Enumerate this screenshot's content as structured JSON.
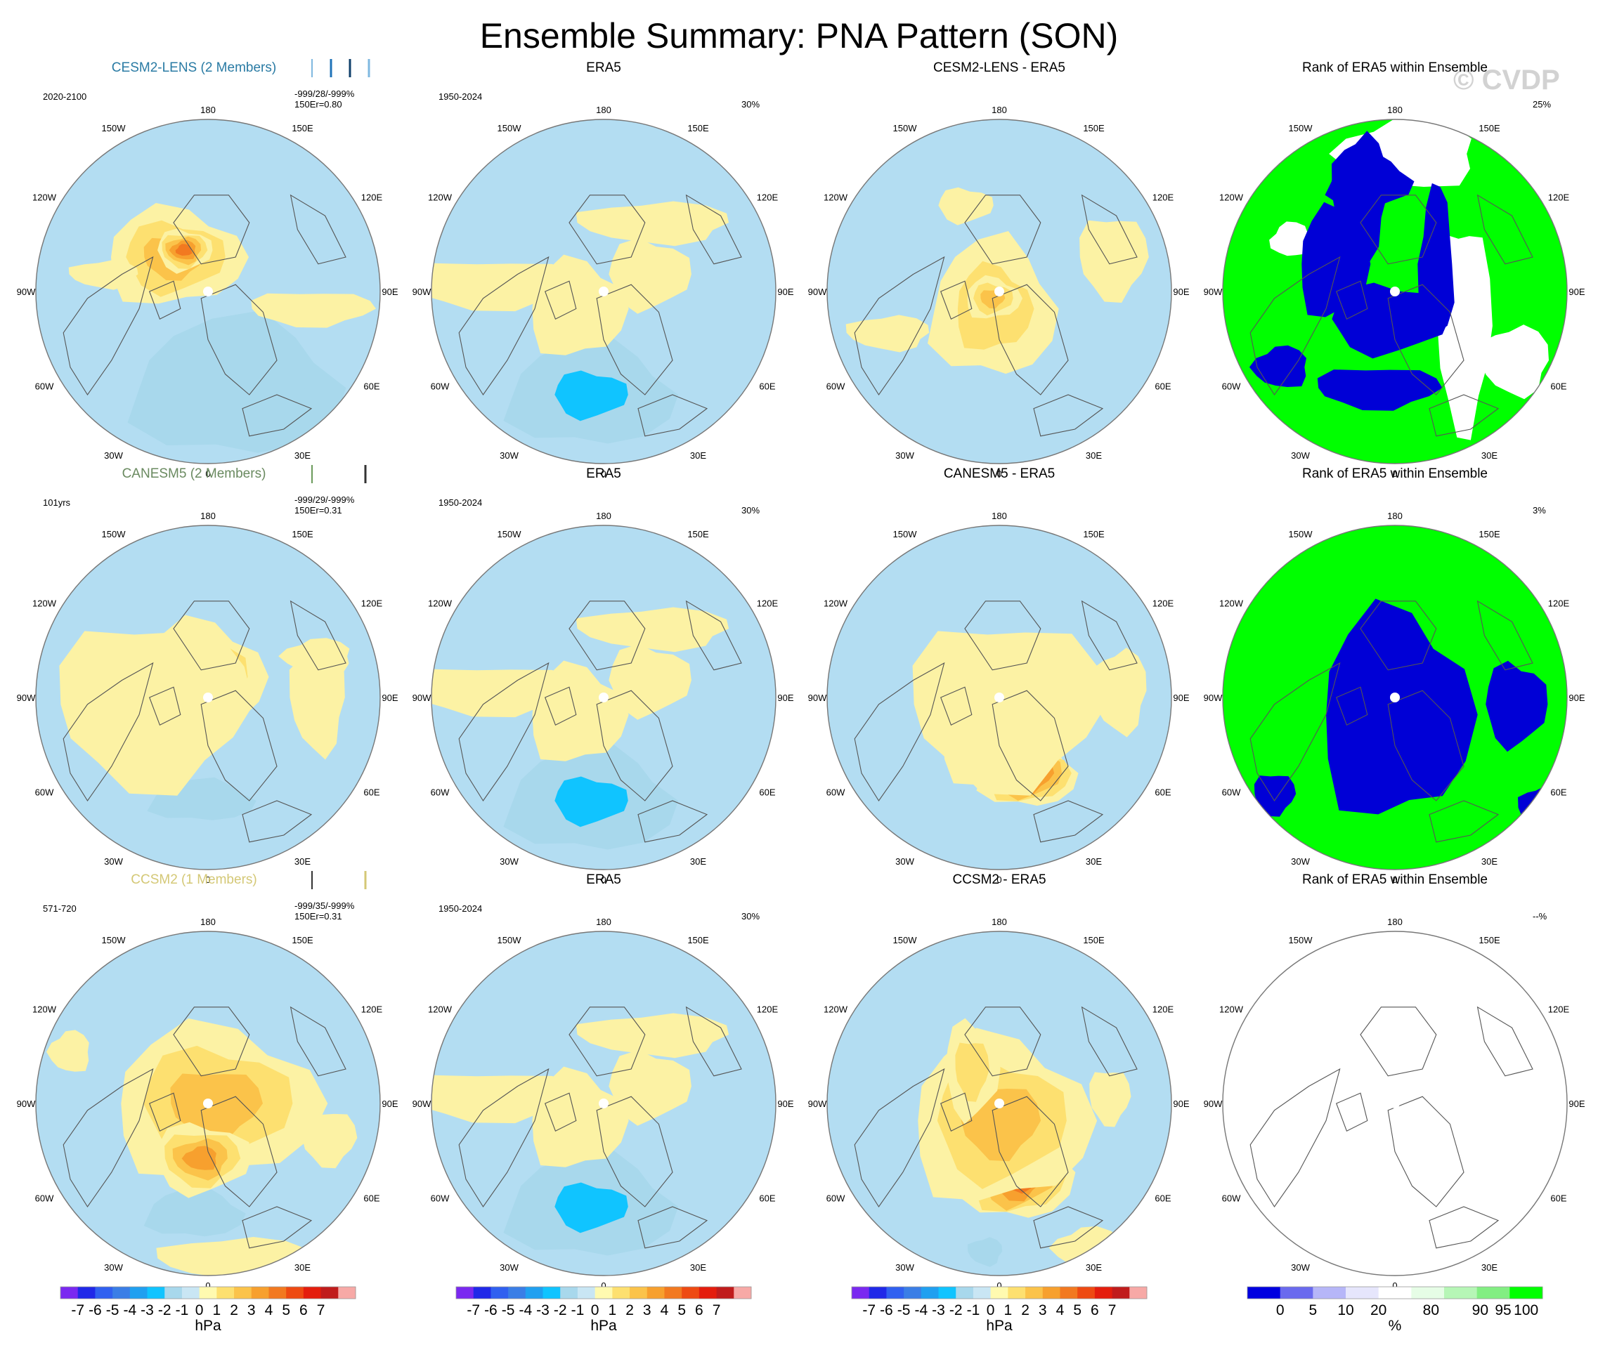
{
  "title": "Ensemble Summary: PNA Pattern (SON)",
  "watermark": "© CVDP",
  "colors": {
    "ocean_neg": "#b3ddf2",
    "land_pos": "#fcf2a4",
    "coast": "#555555",
    "rank_green": "#00ff00",
    "rank_blue": "#0000d6"
  },
  "lon_labels": [
    "180",
    "150E",
    "120E",
    "90E",
    "60E",
    "30E",
    "0",
    "30W",
    "60W",
    "90W",
    "120W",
    "150W"
  ],
  "chart_data": {
    "type": "heatmap",
    "projection": "north-polar-stereographic",
    "rows": [
      {
        "model": {
          "title": "CESM2-LENS (2 Members)",
          "title_color": "#2a7ba4",
          "period": "2020-2100",
          "stats1": "-999/28/-999%",
          "stats2": "150Er=0.80",
          "bars": [
            "#7fb8e0",
            "#1f73b8",
            "#10406b",
            "#7fb8e0"
          ],
          "field": [
            [
              0.58,
              0.78,
              -2.5,
              0.3,
              0.2
            ],
            [
              0.4,
              0.4,
              3.0,
              0.2,
              0.14
            ],
            [
              0.43,
              0.38,
              5.3,
              0.08,
              0.06
            ],
            [
              0.8,
              0.55,
              1.0,
              0.18,
              0.05
            ],
            [
              0.2,
              0.45,
              1.0,
              0.1,
              0.04
            ]
          ]
        },
        "era5": {
          "title": "ERA5",
          "period": "1950-2024",
          "pct": "30%",
          "field": [
            [
              0.46,
              0.8,
              -3.5,
              0.24,
              0.15
            ],
            [
              0.42,
              0.55,
              1.8,
              0.14,
              0.14
            ],
            [
              0.63,
              0.45,
              1.5,
              0.12,
              0.1
            ],
            [
              0.18,
              0.48,
              1.0,
              0.25,
              0.07
            ],
            [
              0.65,
              0.3,
              1.0,
              0.22,
              0.06
            ]
          ]
        },
        "diff": {
          "title": "CESM2-LENS - ERA5",
          "field": [
            [
              0.48,
              0.55,
              2.5,
              0.18,
              0.2
            ],
            [
              0.48,
              0.52,
              3.5,
              0.08,
              0.06
            ],
            [
              0.4,
              0.25,
              1.8,
              0.08,
              0.05
            ],
            [
              0.83,
              0.4,
              1.0,
              0.1,
              0.12
            ],
            [
              0.18,
              0.62,
              1.0,
              0.12,
              0.05
            ]
          ]
        },
        "rank": {
          "title": "Rank of ERA5 within Ensemble",
          "pct": "25%",
          "blue": [
            [
              0.32,
              0.42,
              0.1,
              0.16
            ],
            [
              0.48,
              0.58,
              0.17,
              0.1
            ],
            [
              0.45,
              0.78,
              0.18,
              0.06
            ],
            [
              0.4,
              0.22,
              0.08,
              0.18
            ],
            [
              0.17,
              0.72,
              0.08,
              0.06
            ],
            [
              0.62,
              0.42,
              0.05,
              0.22
            ],
            [
              0.42,
              0.18,
              0.12,
              0.08
            ]
          ],
          "white": [
            [
              0.7,
              0.6,
              0.08,
              0.3
            ],
            [
              0.85,
              0.7,
              0.1,
              0.1
            ],
            [
              0.54,
              0.1,
              0.2,
              0.1
            ],
            [
              0.2,
              0.35,
              0.06,
              0.05
            ]
          ]
        }
      },
      {
        "model": {
          "title": "CANESM5 (2 Members)",
          "title_color": "#6a8a60",
          "period": "101yrs",
          "stats1": "-999/29/-999%",
          "stats2": "150Er=0.31",
          "bars": [
            "#6a9a5a",
            "#333333"
          ],
          "field": [
            [
              0.48,
              0.8,
              -2.0,
              0.15,
              0.06
            ],
            [
              0.48,
              0.44,
              3.0,
              0.18,
              0.16
            ],
            [
              0.44,
              0.46,
              4.8,
              0.1,
              0.08
            ],
            [
              0.34,
              0.52,
              1.0,
              0.28,
              0.24
            ],
            [
              0.82,
              0.5,
              1.0,
              0.08,
              0.16
            ],
            [
              0.82,
              0.38,
              1.0,
              0.1,
              0.05
            ]
          ]
        },
        "era5": {
          "title": "ERA5",
          "period": "1950-2024",
          "pct": "30%",
          "field": [
            [
              0.46,
              0.8,
              -3.8,
              0.24,
              0.15
            ],
            [
              0.42,
              0.55,
              1.8,
              0.14,
              0.14
            ],
            [
              0.63,
              0.45,
              1.5,
              0.12,
              0.1
            ],
            [
              0.18,
              0.48,
              1.0,
              0.25,
              0.07
            ],
            [
              0.65,
              0.3,
              1.0,
              0.22,
              0.06
            ]
          ]
        },
        "diff": {
          "title": "CANESM5 - ERA5",
          "field": [
            [
              0.58,
              0.72,
              6.5,
              0.14,
              0.1
            ],
            [
              0.5,
              0.62,
              3.0,
              0.18,
              0.14
            ],
            [
              0.38,
              0.45,
              2.5,
              0.07,
              0.1
            ],
            [
              0.52,
              0.52,
              1.0,
              0.28,
              0.24
            ],
            [
              0.85,
              0.48,
              1.0,
              0.08,
              0.12
            ]
          ]
        },
        "rank": {
          "title": "Rank of ERA5 within Ensemble",
          "pct": "3%",
          "blue": [
            [
              0.5,
              0.55,
              0.22,
              0.3
            ],
            [
              0.85,
              0.52,
              0.09,
              0.12
            ],
            [
              0.15,
              0.78,
              0.06,
              0.06
            ],
            [
              0.92,
              0.82,
              0.06,
              0.06
            ]
          ],
          "white": []
        }
      },
      {
        "model": {
          "title": "CCSM2 (1 Members)",
          "title_color": "#d4c876",
          "period": "571-720",
          "stats1": "-999/35/-999%",
          "stats2": "150Er=0.31",
          "bars": [
            "#333333",
            "#d4c876"
          ],
          "field": [
            [
              0.46,
              0.82,
              -2.5,
              0.14,
              0.07
            ],
            [
              0.52,
              0.5,
              3.5,
              0.3,
              0.22
            ],
            [
              0.48,
              0.66,
              4.5,
              0.14,
              0.1
            ],
            [
              0.85,
              0.6,
              1.0,
              0.08,
              0.08
            ],
            [
              0.58,
              0.95,
              1.0,
              0.22,
              0.06
            ],
            [
              0.1,
              0.35,
              1.0,
              0.06,
              0.06
            ]
          ]
        },
        "era5": {
          "title": "ERA5",
          "period": "1950-2024",
          "pct": "30%",
          "field": [
            [
              0.46,
              0.8,
              -3.8,
              0.24,
              0.15
            ],
            [
              0.42,
              0.55,
              1.8,
              0.14,
              0.14
            ],
            [
              0.63,
              0.45,
              1.5,
              0.12,
              0.1
            ],
            [
              0.18,
              0.48,
              1.0,
              0.25,
              0.07
            ],
            [
              0.65,
              0.3,
              1.0,
              0.22,
              0.06
            ]
          ]
        },
        "diff": {
          "title": "CCSM2 - ERA5",
          "field": [
            [
              0.55,
              0.7,
              6.5,
              0.16,
              0.14
            ],
            [
              0.5,
              0.55,
              3.0,
              0.26,
              0.24
            ],
            [
              0.42,
              0.4,
              2.0,
              0.08,
              0.14
            ],
            [
              0.82,
              0.48,
              1.0,
              0.06,
              0.08
            ],
            [
              0.46,
              0.93,
              -1.8,
              0.05,
              0.04
            ],
            [
              0.76,
              0.92,
              1.0,
              0.1,
              0.06
            ]
          ]
        },
        "rank": {
          "title": "Rank of ERA5 within Ensemble",
          "pct": "--%",
          "blue": [],
          "white": []
        }
      }
    ],
    "colorbar": {
      "levels": [
        "-7",
        "-6",
        "-5",
        "-4",
        "-3",
        "-2",
        "-1",
        "0",
        "1",
        "2",
        "3",
        "4",
        "5",
        "6",
        "7"
      ],
      "colors": [
        "#7a28f0",
        "#2028e8",
        "#3060f0",
        "#3a7ee6",
        "#20a0f0",
        "#10c4ff",
        "#a8d8ec",
        "#c9e6f4",
        "#fffab0",
        "#fde070",
        "#fbc34a",
        "#f7a02e",
        "#f27920",
        "#ee4a12",
        "#e41d0d",
        "#c01c1c",
        "#f7a9a6"
      ],
      "unit": "hPa"
    },
    "rank_colorbar": {
      "levels": [
        "0",
        "5",
        "10",
        "20",
        "80",
        "90",
        "95",
        "100"
      ],
      "colors": [
        "#0000e0",
        "#6a6aee",
        "#b6b6f8",
        "#e6e6fc",
        "#ffffff",
        "#e6fde6",
        "#b6f6b6",
        "#82ee82",
        "#00ff00"
      ],
      "unit": "%"
    }
  }
}
